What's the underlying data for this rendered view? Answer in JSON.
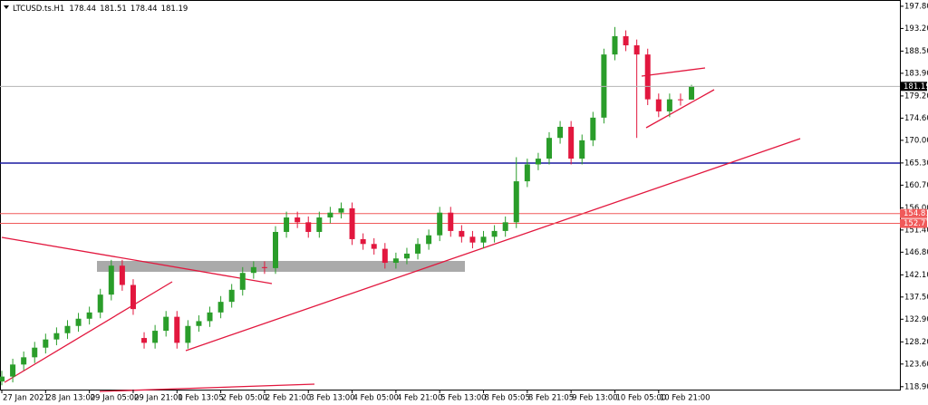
{
  "chart_data": {
    "type": "candlestick",
    "title": "LTCUSD.ts.H1",
    "categories": [
      "27 Jan 2021",
      null,
      null,
      null,
      "28 Jan 13:00",
      null,
      null,
      null,
      "29 Jan 05:00",
      null,
      null,
      null,
      "29 Jan 21:00",
      null,
      null,
      null,
      "1 Feb 13:05",
      null,
      null,
      null,
      "2 Feb 05:00",
      null,
      null,
      null,
      "2 Feb 21:00",
      null,
      null,
      null,
      "3 Feb 13:00",
      null,
      null,
      null,
      "4 Feb 05:00",
      null,
      null,
      null,
      "4 Feb 21:00",
      null,
      null,
      null,
      "5 Feb 13:00",
      null,
      null,
      null,
      "8 Feb 05:05",
      null,
      null,
      null,
      "8 Feb 21:05",
      null,
      null,
      null,
      "9 Feb 13:00",
      null,
      null,
      null,
      "10 Feb 05:00",
      null,
      null,
      null,
      "10 Feb 21:00",
      null,
      null,
      null
    ],
    "open": [
      120.0,
      121.0,
      123.5,
      125.0,
      127.0,
      128.7,
      130.0,
      131.5,
      133.0,
      134.3,
      138.0,
      144.0,
      140.0,
      129.0,
      128.0,
      130.5,
      133.4,
      128.0,
      131.5,
      132.5,
      134.3,
      136.5,
      139.0,
      142.5,
      143.7,
      143.5,
      151.0,
      154.0,
      153.0,
      151.0,
      154.0,
      155.0,
      155.9,
      149.5,
      148.5,
      147.5,
      144.6,
      145.5,
      146.5,
      148.5,
      150.3,
      155.0,
      151.2,
      150.0,
      148.8,
      150.0,
      151.2,
      153.0,
      161.5,
      165.0,
      166.2,
      170.5,
      172.8,
      166.2,
      170.0,
      174.7,
      187.8,
      191.6,
      189.7,
      187.8,
      178.5,
      176.0,
      178.5,
      178.44
    ],
    "high": [
      122.2,
      124.7,
      126.2,
      128.2,
      129.9,
      131.2,
      132.7,
      134.2,
      135.5,
      139.2,
      145.2,
      145.2,
      141.2,
      130.2,
      131.7,
      134.6,
      134.6,
      132.7,
      133.7,
      135.5,
      137.7,
      140.2,
      143.7,
      144.9,
      144.9,
      152.2,
      155.2,
      155.2,
      154.2,
      155.2,
      156.2,
      157.1,
      157.1,
      150.7,
      149.7,
      148.7,
      146.7,
      147.7,
      149.7,
      151.5,
      156.2,
      156.2,
      152.4,
      151.2,
      151.2,
      152.4,
      154.2,
      166.5,
      166.2,
      167.4,
      171.7,
      174.0,
      174.0,
      171.2,
      175.9,
      189.0,
      193.5,
      192.8,
      190.9,
      189.0,
      179.7,
      179.7,
      179.7,
      181.51
    ],
    "low": [
      119.2,
      119.8,
      122.3,
      123.8,
      125.8,
      127.5,
      128.8,
      130.3,
      131.8,
      133.1,
      136.8,
      138.8,
      133.8,
      126.8,
      126.8,
      129.3,
      126.8,
      126.8,
      130.3,
      131.3,
      133.1,
      135.3,
      137.8,
      141.3,
      142.3,
      142.3,
      149.8,
      151.8,
      149.8,
      149.8,
      152.8,
      153.8,
      148.3,
      147.3,
      146.3,
      143.4,
      143.4,
      144.3,
      145.3,
      147.3,
      149.1,
      150.0,
      148.8,
      147.6,
      147.6,
      148.8,
      150.0,
      151.8,
      160.3,
      163.8,
      165.0,
      169.3,
      165.0,
      165.0,
      168.8,
      173.5,
      186.6,
      188.5,
      170.5,
      177.3,
      174.8,
      174.8,
      177.2,
      178.44
    ],
    "close": [
      121.0,
      123.5,
      125.0,
      127.0,
      128.7,
      130.0,
      131.5,
      133.0,
      134.3,
      138.0,
      144.0,
      140.0,
      135.0,
      128.0,
      130.5,
      133.4,
      128.0,
      131.5,
      132.5,
      134.3,
      136.5,
      139.0,
      142.5,
      143.7,
      143.5,
      151.0,
      154.0,
      153.0,
      151.0,
      154.0,
      155.0,
      155.9,
      149.5,
      148.5,
      147.5,
      144.6,
      145.5,
      146.5,
      148.5,
      150.3,
      155.0,
      151.2,
      150.0,
      148.8,
      150.0,
      151.2,
      153.0,
      161.5,
      165.0,
      166.2,
      170.5,
      172.8,
      166.2,
      170.0,
      174.7,
      187.8,
      191.6,
      189.7,
      187.8,
      178.5,
      176.0,
      178.5,
      178.44,
      181.19
    ],
    "up_color": "#2a9d2a",
    "down_color": "#e2173e",
    "ylim": [
      118.3,
      199.1
    ],
    "yticks": [
      {
        "value": 197.8,
        "label": "197.80"
      },
      {
        "value": 193.2,
        "label": "193.20"
      },
      {
        "value": 188.5,
        "label": "188.50"
      },
      {
        "value": 183.9,
        "label": "183.90"
      },
      {
        "value": 179.2,
        "label": "179.20"
      },
      {
        "value": 174.6,
        "label": "174.60"
      },
      {
        "value": 170.0,
        "label": "170.00"
      },
      {
        "value": 165.3,
        "label": "165.30"
      },
      {
        "value": 160.7,
        "label": "160.70"
      },
      {
        "value": 156.0,
        "label": "156.00"
      },
      {
        "value": 151.4,
        "label": "151.40"
      },
      {
        "value": 146.8,
        "label": "146.80"
      },
      {
        "value": 142.1,
        "label": "142.10"
      },
      {
        "value": 137.5,
        "label": "137.50"
      },
      {
        "value": 132.9,
        "label": "132.90"
      },
      {
        "value": 128.2,
        "label": "128.20"
      },
      {
        "value": 123.6,
        "label": "123.60"
      },
      {
        "value": 118.9,
        "label": "118.90"
      }
    ],
    "levels": {
      "values": [
        154.81,
        152.77
      ],
      "color": "#f05a5a"
    },
    "bid_color": "#b4b4b4"
  }
}
